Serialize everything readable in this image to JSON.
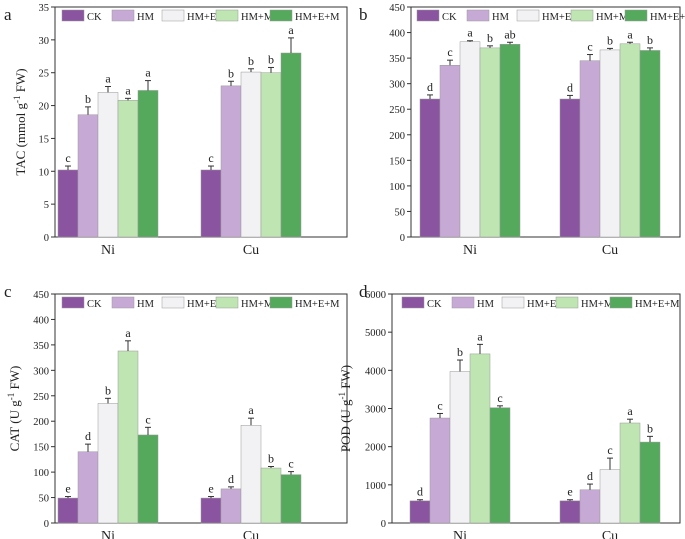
{
  "colors": {
    "CK": "#8b54a0",
    "HM": "#c7a9d6",
    "HM+E": "#f2f2f4",
    "HM+M": "#bfe5b3",
    "HM+E+M": "#55a95d",
    "axis": "#333333",
    "error": "#333333"
  },
  "chart_data": [
    {
      "panel": "a",
      "type": "bar",
      "ylabel": "TAC (mmol g-1 FW)",
      "ylabel_parts": [
        "TAC (mmol g",
        "-1",
        " FW)"
      ],
      "categories": [
        "Ni",
        "Cu"
      ],
      "ylim": [
        0,
        35
      ],
      "yticks": [
        0,
        5,
        10,
        15,
        20,
        25,
        30,
        35
      ],
      "legend": [
        "CK",
        "HM",
        "HM+E",
        "HM+M",
        "HM+E+M"
      ],
      "series": [
        {
          "name": "CK",
          "values": [
            10.2,
            10.2
          ],
          "errors": [
            0.6,
            0.6
          ],
          "letters": [
            "c",
            "c"
          ]
        },
        {
          "name": "HM",
          "values": [
            18.6,
            23.0
          ],
          "errors": [
            1.2,
            0.7
          ],
          "letters": [
            "b",
            "b"
          ]
        },
        {
          "name": "HM+E",
          "values": [
            22.0,
            25.1
          ],
          "errors": [
            0.9,
            0.5
          ],
          "letters": [
            "a",
            "b"
          ]
        },
        {
          "name": "HM+M",
          "values": [
            20.8,
            25.0
          ],
          "errors": [
            0.3,
            0.8
          ],
          "letters": [
            "a",
            "b"
          ]
        },
        {
          "name": "HM+E+M",
          "values": [
            22.3,
            28.0
          ],
          "errors": [
            1.5,
            2.3
          ],
          "letters": [
            "a",
            "a"
          ]
        }
      ]
    },
    {
      "panel": "b",
      "type": "bar",
      "ylabel": "",
      "ylabel_parts": [],
      "categories": [
        "Ni",
        "Cu"
      ],
      "ylim": [
        0,
        450
      ],
      "yticks": [
        0,
        50,
        100,
        150,
        200,
        250,
        300,
        350,
        400,
        450
      ],
      "legend": [
        "CK",
        "HM",
        "HM+E",
        "HM+M",
        "HM+E+M"
      ],
      "series": [
        {
          "name": "CK",
          "values": [
            270,
            270
          ],
          "errors": [
            8,
            7
          ],
          "letters": [
            "d",
            "d"
          ]
        },
        {
          "name": "HM",
          "values": [
            336,
            345
          ],
          "errors": [
            10,
            12
          ],
          "letters": [
            "c",
            "c"
          ]
        },
        {
          "name": "HM+E",
          "values": [
            382,
            366
          ],
          "errors": [
            2,
            3
          ],
          "letters": [
            "a",
            "b"
          ]
        },
        {
          "name": "HM+M",
          "values": [
            370,
            378
          ],
          "errors": [
            4,
            3
          ],
          "letters": [
            "b",
            "a"
          ]
        },
        {
          "name": "HM+E+M",
          "values": [
            377,
            365
          ],
          "errors": [
            4,
            5
          ],
          "letters": [
            "ab",
            "b"
          ]
        }
      ]
    },
    {
      "panel": "c",
      "type": "bar",
      "ylabel": "CAT (U g-1 FW)",
      "ylabel_parts": [
        "CAT (U g",
        "-1",
        " FW)"
      ],
      "categories": [
        "Ni",
        "Cu"
      ],
      "ylim": [
        0,
        450
      ],
      "yticks": [
        0,
        50,
        100,
        150,
        200,
        250,
        300,
        350,
        400,
        450
      ],
      "legend": [
        "CK",
        "HM",
        "HM+E",
        "HM+M",
        "HM+E+M"
      ],
      "series": [
        {
          "name": "CK",
          "values": [
            49,
            49
          ],
          "errors": [
            3,
            3
          ],
          "letters": [
            "e",
            "e"
          ]
        },
        {
          "name": "HM",
          "values": [
            140,
            67
          ],
          "errors": [
            15,
            4
          ],
          "letters": [
            "d",
            "d"
          ]
        },
        {
          "name": "HM+E",
          "values": [
            235,
            192
          ],
          "errors": [
            10,
            14
          ],
          "letters": [
            "b",
            "a"
          ]
        },
        {
          "name": "HM+M",
          "values": [
            338,
            108
          ],
          "errors": [
            20,
            3
          ],
          "letters": [
            "a",
            "b"
          ]
        },
        {
          "name": "HM+E+M",
          "values": [
            173,
            95
          ],
          "errors": [
            15,
            6
          ],
          "letters": [
            "c",
            "c"
          ]
        }
      ]
    },
    {
      "panel": "d",
      "type": "bar",
      "ylabel": "POD (U g-1 FW)",
      "ylabel_parts": [
        "POD (U g",
        "-1",
        " FW)"
      ],
      "categories": [
        "Ni",
        "Cu"
      ],
      "ylim": [
        0,
        6000
      ],
      "yticks": [
        0,
        1000,
        2000,
        3000,
        4000,
        5000,
        6000
      ],
      "legend": [
        "CK",
        "HM",
        "HM+E",
        "HM+M",
        "HM+E+M"
      ],
      "series": [
        {
          "name": "CK",
          "values": [
            580,
            580
          ],
          "errors": [
            30,
            30
          ],
          "letters": [
            "d",
            "e"
          ]
        },
        {
          "name": "HM",
          "values": [
            2750,
            870
          ],
          "errors": [
            120,
            150
          ],
          "letters": [
            "c",
            "d"
          ]
        },
        {
          "name": "HM+E",
          "values": [
            3970,
            1400
          ],
          "errors": [
            300,
            300
          ],
          "letters": [
            "b",
            "c"
          ]
        },
        {
          "name": "HM+M",
          "values": [
            4430,
            2620
          ],
          "errors": [
            250,
            100
          ],
          "letters": [
            "a",
            "a"
          ]
        },
        {
          "name": "HM+E+M",
          "values": [
            3020,
            2120
          ],
          "errors": [
            50,
            150
          ],
          "letters": [
            "c",
            "b"
          ]
        }
      ]
    }
  ]
}
